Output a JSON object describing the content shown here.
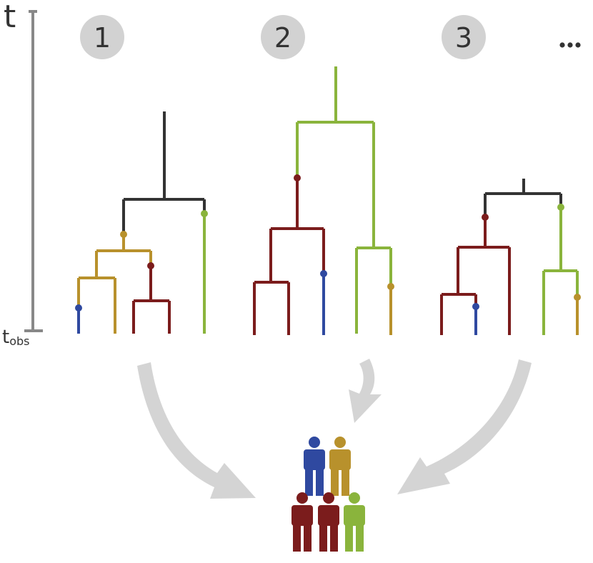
{
  "time_axis": {
    "label": "t",
    "bottom_label_main": "t",
    "bottom_label_sub": "obs"
  },
  "trees": [
    {
      "number": "1"
    },
    {
      "number": "2"
    },
    {
      "number": "3"
    }
  ],
  "ellipsis": "...",
  "colors": {
    "axis": "#888888",
    "badge": "#d2d2d2",
    "badge_text": "#333333",
    "dark": "#333333",
    "red": "#7b1c1c",
    "gold": "#b8912c",
    "blue": "#2f49a0",
    "green": "#8ab43c",
    "arrow": "#d4d4d4"
  },
  "people": [
    {
      "color": "blue"
    },
    {
      "color": "gold"
    },
    {
      "color": "red"
    },
    {
      "color": "red"
    },
    {
      "color": "green"
    }
  ]
}
